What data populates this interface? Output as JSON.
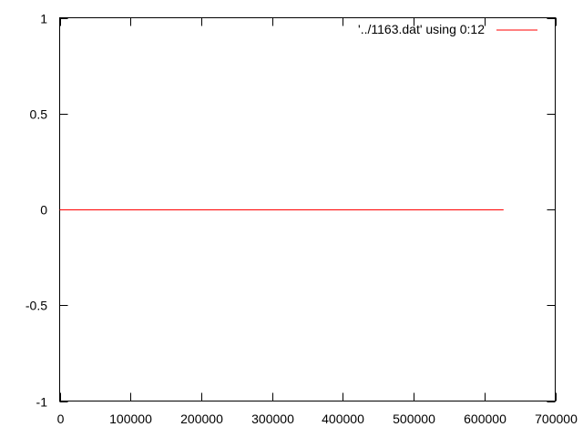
{
  "chart_data": {
    "type": "line",
    "title": "",
    "xlabel": "",
    "ylabel": "",
    "xlim": [
      0,
      700000
    ],
    "ylim": [
      -1,
      1
    ],
    "x_ticks": [
      0,
      100000,
      200000,
      300000,
      400000,
      500000,
      600000,
      700000
    ],
    "x_tick_labels": [
      "0",
      "100000",
      "200000",
      "300000",
      "400000",
      "500000",
      "600000",
      "700000"
    ],
    "y_ticks": [
      -1,
      -0.5,
      0,
      0.5,
      1
    ],
    "y_tick_labels": [
      "-1",
      "-0.5",
      "0",
      "0.5",
      "1"
    ],
    "grid": false,
    "legend_position": "top-right",
    "series": [
      {
        "name": "'../1163.dat' using 0:12",
        "color": "#ff0000",
        "x": [
          0,
          627000
        ],
        "y": [
          0,
          0
        ]
      }
    ]
  }
}
